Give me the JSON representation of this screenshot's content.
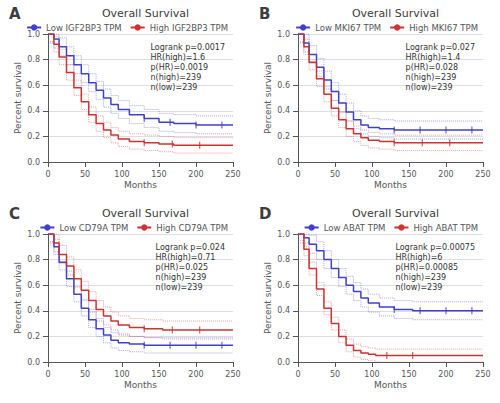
{
  "chart_data": [
    {
      "type": "step",
      "title": "Overall Survival",
      "annotations": [
        "A",
        "Logrank p=0.0017\nHR(high)=1.6\np(HR)=0.0019\nn(high)=239\nn(low)=239"
      ],
      "xlabel": "Months",
      "ylabel": "Percent survival",
      "xlim": [
        0,
        250
      ],
      "ylim": [
        0,
        1.0
      ],
      "xticks": [
        0,
        50,
        100,
        150,
        200,
        250
      ],
      "yticks": [
        {
          "value": 0,
          "label": "0.0"
        },
        0.2,
        0.4,
        0.6,
        0.8,
        {
          "value": 1.0,
          "label": "1.0"
        }
      ],
      "grid": true,
      "legend": "upper right",
      "series": [
        {
          "name": "Low IGF2BP3 TPM",
          "color": "#4040cc",
          "x": [
            0,
            8,
            15,
            25,
            35,
            45,
            55,
            65,
            75,
            85,
            95,
            110,
            130,
            150,
            170,
            200,
            230,
            250
          ],
          "values": [
            1.0,
            0.96,
            0.9,
            0.83,
            0.76,
            0.69,
            0.62,
            0.56,
            0.5,
            0.45,
            0.41,
            0.37,
            0.34,
            0.31,
            0.3,
            0.29,
            0.29,
            0.29
          ],
          "ci_upper": [
            1.0,
            1.0,
            0.97,
            0.9,
            0.83,
            0.76,
            0.69,
            0.63,
            0.57,
            0.52,
            0.48,
            0.44,
            0.41,
            0.38,
            0.37,
            0.36,
            0.36,
            0.36
          ],
          "ci_lower": [
            0.93,
            0.89,
            0.83,
            0.76,
            0.69,
            0.62,
            0.55,
            0.49,
            0.43,
            0.38,
            0.34,
            0.3,
            0.27,
            0.24,
            0.23,
            0.22,
            0.22,
            0.22
          ],
          "censor_x": [
            130,
            165,
            200,
            235
          ],
          "censor_y": [
            0.34,
            0.31,
            0.29,
            0.29
          ]
        },
        {
          "name": "High IGF2BP3 TPM",
          "color": "#cc3333",
          "x": [
            0,
            8,
            15,
            25,
            35,
            45,
            55,
            65,
            75,
            85,
            95,
            110,
            130,
            150,
            170,
            200,
            230,
            250
          ],
          "values": [
            1.0,
            0.92,
            0.82,
            0.7,
            0.58,
            0.47,
            0.37,
            0.3,
            0.25,
            0.21,
            0.18,
            0.16,
            0.15,
            0.14,
            0.13,
            0.13,
            0.13,
            0.13
          ],
          "ci_upper": [
            1.0,
            0.98,
            0.88,
            0.76,
            0.64,
            0.53,
            0.43,
            0.36,
            0.31,
            0.27,
            0.24,
            0.22,
            0.21,
            0.2,
            0.19,
            0.19,
            0.19,
            0.19
          ],
          "ci_lower": [
            0.94,
            0.86,
            0.76,
            0.64,
            0.52,
            0.41,
            0.31,
            0.24,
            0.19,
            0.15,
            0.12,
            0.1,
            0.09,
            0.08,
            0.07,
            0.07,
            0.07,
            0.07
          ],
          "censor_x": [
            130,
            168,
            205
          ],
          "censor_y": [
            0.15,
            0.14,
            0.13
          ]
        }
      ]
    },
    {
      "type": "step",
      "title": "Overall Survival",
      "annotations": [
        "B",
        "Logrank p=0.027\nHR(high)=1.4\np(HR)=0.028\nn(high)=239\nn(low)=239"
      ],
      "xlabel": "Months",
      "ylabel": "Percent survival",
      "xlim": [
        0,
        250
      ],
      "ylim": [
        0,
        1.0
      ],
      "xticks": [
        0,
        50,
        100,
        150,
        200,
        250
      ],
      "yticks": [
        {
          "value": 0,
          "label": "0.0"
        },
        0.2,
        0.4,
        0.6,
        0.8,
        {
          "value": 1.0,
          "label": "1.0"
        }
      ],
      "grid": true,
      "legend": "upper right",
      "series": [
        {
          "name": "Low MKI67 TPM",
          "color": "#4040cc",
          "x": [
            0,
            8,
            15,
            25,
            35,
            45,
            55,
            65,
            75,
            85,
            95,
            110,
            130,
            155,
            185,
            220,
            250
          ],
          "values": [
            1.0,
            0.93,
            0.84,
            0.74,
            0.64,
            0.55,
            0.46,
            0.39,
            0.33,
            0.29,
            0.27,
            0.26,
            0.25,
            0.25,
            0.25,
            0.25,
            0.25
          ],
          "ci_upper": [
            1.0,
            1.0,
            0.91,
            0.81,
            0.71,
            0.62,
            0.53,
            0.46,
            0.4,
            0.36,
            0.34,
            0.33,
            0.32,
            0.32,
            0.32,
            0.32,
            0.32
          ],
          "ci_lower": [
            0.93,
            0.86,
            0.77,
            0.67,
            0.57,
            0.48,
            0.39,
            0.32,
            0.26,
            0.22,
            0.2,
            0.19,
            0.18,
            0.18,
            0.18,
            0.18,
            0.18
          ],
          "censor_x": [
            130,
            165,
            200,
            235
          ],
          "censor_y": [
            0.25,
            0.25,
            0.25,
            0.25
          ]
        },
        {
          "name": "High MKI67 TPM",
          "color": "#cc3333",
          "x": [
            0,
            8,
            15,
            25,
            35,
            45,
            55,
            65,
            75,
            85,
            95,
            110,
            130,
            155,
            185,
            220,
            250
          ],
          "values": [
            1.0,
            0.9,
            0.78,
            0.65,
            0.53,
            0.42,
            0.33,
            0.26,
            0.22,
            0.19,
            0.17,
            0.16,
            0.15,
            0.15,
            0.15,
            0.15,
            0.15
          ],
          "ci_upper": [
            1.0,
            0.96,
            0.84,
            0.71,
            0.59,
            0.48,
            0.39,
            0.32,
            0.28,
            0.25,
            0.23,
            0.22,
            0.21,
            0.21,
            0.21,
            0.21,
            0.21
          ],
          "ci_lower": [
            0.94,
            0.84,
            0.72,
            0.59,
            0.47,
            0.36,
            0.27,
            0.2,
            0.16,
            0.13,
            0.11,
            0.1,
            0.09,
            0.09,
            0.09,
            0.09,
            0.09
          ],
          "censor_x": [
            130,
            168,
            205
          ],
          "censor_y": [
            0.15,
            0.15,
            0.15
          ]
        }
      ]
    },
    {
      "type": "step",
      "title": "Overall Survival",
      "annotations": [
        "C",
        "Logrank p=0.024\nHR(high)=0.71\np(HR)=0.025\nn(high)=239\nn(low)=239"
      ],
      "xlabel": "Months",
      "ylabel": "Percent survival",
      "xlim": [
        0,
        250
      ],
      "ylim": [
        0,
        1.0
      ],
      "xticks": [
        0,
        50,
        100,
        150,
        200,
        250
      ],
      "yticks": [
        {
          "value": 0,
          "label": "0.0"
        },
        0.2,
        0.4,
        0.6,
        0.8,
        {
          "value": 1.0,
          "label": "1.0"
        }
      ],
      "grid": true,
      "legend": "upper right",
      "series": [
        {
          "name": "Low CD79A TPM",
          "color": "#4040cc",
          "x": [
            0,
            8,
            15,
            25,
            35,
            45,
            55,
            65,
            75,
            85,
            95,
            110,
            130,
            155,
            185,
            220,
            250
          ],
          "values": [
            1.0,
            0.9,
            0.78,
            0.65,
            0.53,
            0.42,
            0.33,
            0.26,
            0.21,
            0.17,
            0.15,
            0.14,
            0.13,
            0.13,
            0.13,
            0.13,
            0.13
          ],
          "ci_upper": [
            1.0,
            0.96,
            0.84,
            0.71,
            0.59,
            0.48,
            0.39,
            0.32,
            0.27,
            0.23,
            0.21,
            0.2,
            0.19,
            0.19,
            0.19,
            0.19,
            0.19
          ],
          "ci_lower": [
            0.94,
            0.84,
            0.72,
            0.59,
            0.47,
            0.36,
            0.27,
            0.2,
            0.15,
            0.11,
            0.09,
            0.08,
            0.07,
            0.07,
            0.07,
            0.07,
            0.07
          ],
          "censor_x": [
            130,
            165,
            200,
            235
          ],
          "censor_y": [
            0.13,
            0.13,
            0.13,
            0.13
          ]
        },
        {
          "name": "High CD79A TPM",
          "color": "#cc3333",
          "x": [
            0,
            8,
            15,
            25,
            35,
            45,
            55,
            65,
            75,
            85,
            95,
            110,
            130,
            155,
            185,
            220,
            250
          ],
          "values": [
            1.0,
            0.93,
            0.84,
            0.75,
            0.65,
            0.56,
            0.48,
            0.41,
            0.36,
            0.32,
            0.29,
            0.27,
            0.26,
            0.25,
            0.25,
            0.25,
            0.25
          ],
          "ci_upper": [
            1.0,
            1.0,
            0.91,
            0.82,
            0.72,
            0.63,
            0.55,
            0.48,
            0.43,
            0.39,
            0.36,
            0.34,
            0.33,
            0.32,
            0.32,
            0.32,
            0.32
          ],
          "ci_lower": [
            0.93,
            0.86,
            0.77,
            0.68,
            0.58,
            0.49,
            0.41,
            0.34,
            0.29,
            0.25,
            0.22,
            0.2,
            0.19,
            0.18,
            0.18,
            0.18,
            0.18
          ],
          "censor_x": [
            130,
            168,
            205
          ],
          "censor_y": [
            0.26,
            0.25,
            0.25
          ]
        }
      ]
    },
    {
      "type": "step",
      "title": "Overall Survival",
      "annotations": [
        "D",
        "Logrank p=0.00075\nHR(high)=6\np(HR)=0.00085\nn(high)=239\nn(low)=239"
      ],
      "xlabel": "Months",
      "ylabel": "Percent survival",
      "xlim": [
        0,
        250
      ],
      "ylim": [
        0,
        1.0
      ],
      "xticks": [
        0,
        50,
        100,
        150,
        200,
        250
      ],
      "yticks": [
        {
          "value": 0,
          "label": "0.0"
        },
        0.2,
        0.4,
        0.6,
        0.8,
        {
          "value": 1.0,
          "label": "1.0"
        }
      ],
      "grid": true,
      "legend": "upper right",
      "series": [
        {
          "name": "Low ABAT TPM",
          "color": "#4040cc",
          "x": [
            0,
            8,
            15,
            25,
            35,
            45,
            55,
            65,
            75,
            85,
            95,
            110,
            130,
            155,
            185,
            220,
            250
          ],
          "values": [
            1.0,
            0.97,
            0.92,
            0.87,
            0.8,
            0.73,
            0.66,
            0.6,
            0.55,
            0.5,
            0.46,
            0.43,
            0.41,
            0.4,
            0.4,
            0.4,
            0.4
          ],
          "ci_upper": [
            1.0,
            1.0,
            0.99,
            0.94,
            0.87,
            0.8,
            0.73,
            0.67,
            0.62,
            0.57,
            0.53,
            0.5,
            0.48,
            0.47,
            0.47,
            0.47,
            0.47
          ],
          "ci_lower": [
            0.93,
            0.9,
            0.85,
            0.8,
            0.73,
            0.66,
            0.59,
            0.53,
            0.48,
            0.43,
            0.39,
            0.36,
            0.34,
            0.33,
            0.33,
            0.33,
            0.33
          ],
          "censor_x": [
            130,
            165,
            200,
            235
          ],
          "censor_y": [
            0.41,
            0.4,
            0.4,
            0.4
          ]
        },
        {
          "name": "High ABAT TPM",
          "color": "#cc3333",
          "x": [
            0,
            8,
            15,
            25,
            35,
            45,
            55,
            65,
            75,
            85,
            95,
            105,
            120,
            150,
            180,
            220,
            250
          ],
          "values": [
            1.0,
            0.88,
            0.73,
            0.57,
            0.42,
            0.3,
            0.2,
            0.13,
            0.09,
            0.07,
            0.06,
            0.05,
            0.05,
            0.05,
            0.05,
            0.05,
            0.05
          ],
          "ci_upper": [
            1.0,
            0.93,
            0.78,
            0.62,
            0.47,
            0.35,
            0.25,
            0.18,
            0.14,
            0.12,
            0.11,
            0.1,
            0.1,
            0.1,
            0.1,
            0.1,
            0.1
          ],
          "ci_lower": [
            0.95,
            0.83,
            0.68,
            0.52,
            0.37,
            0.25,
            0.15,
            0.08,
            0.04,
            0.02,
            0.01,
            0,
            0,
            0,
            0,
            0,
            0
          ],
          "censor_x": [
            120,
            155
          ],
          "censor_y": [
            0.05,
            0.05
          ]
        }
      ]
    }
  ]
}
